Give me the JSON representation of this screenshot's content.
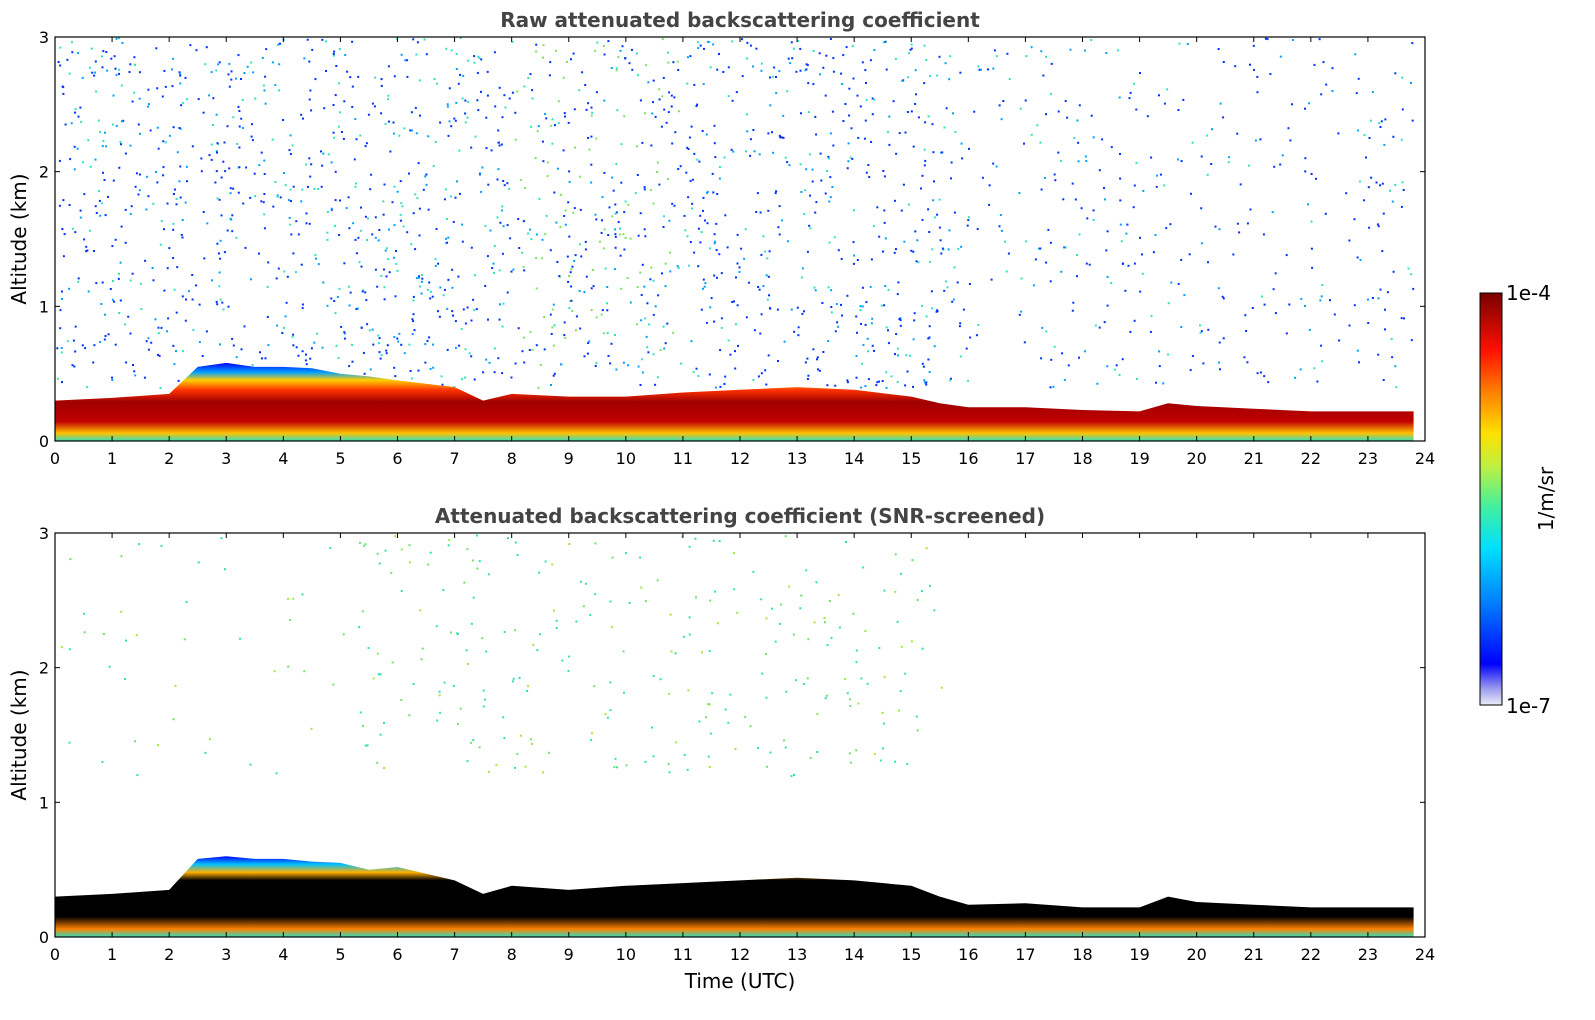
{
  "chart_data": [
    {
      "type": "heatmap",
      "title": "Raw attenuated backscattering coefficient",
      "xlabel": "",
      "ylabel": "Altitude (km)",
      "xlim": [
        0,
        24
      ],
      "ylim": [
        0,
        3
      ],
      "xticks": [
        "0",
        "1",
        "2",
        "3",
        "4",
        "5",
        "6",
        "7",
        "8",
        "9",
        "10",
        "11",
        "12",
        "13",
        "14",
        "15",
        "16",
        "17",
        "18",
        "19",
        "20",
        "21",
        "22",
        "23",
        "24"
      ],
      "yticks": [
        "0",
        "1",
        "2",
        "3"
      ],
      "layer_top_km": [
        [
          0,
          0.3
        ],
        [
          1,
          0.32
        ],
        [
          2,
          0.35
        ],
        [
          2.5,
          0.55
        ],
        [
          3,
          0.58
        ],
        [
          3.5,
          0.55
        ],
        [
          4,
          0.55
        ],
        [
          4.5,
          0.54
        ],
        [
          5,
          0.5
        ],
        [
          5.5,
          0.48
        ],
        [
          6,
          0.45
        ],
        [
          7,
          0.4
        ],
        [
          7.5,
          0.3
        ],
        [
          8,
          0.35
        ],
        [
          9,
          0.33
        ],
        [
          10,
          0.33
        ],
        [
          11,
          0.36
        ],
        [
          12,
          0.38
        ],
        [
          13,
          0.4
        ],
        [
          14,
          0.38
        ],
        [
          15,
          0.33
        ],
        [
          15.5,
          0.28
        ],
        [
          16,
          0.25
        ],
        [
          17,
          0.25
        ],
        [
          18,
          0.23
        ],
        [
          19,
          0.22
        ],
        [
          19.5,
          0.28
        ],
        [
          20,
          0.26
        ],
        [
          21,
          0.24
        ],
        [
          22,
          0.22
        ],
        [
          23,
          0.22
        ],
        [
          23.8,
          0.22
        ]
      ],
      "colorbar": {
        "min": "1e-7",
        "max": "1e-4",
        "label": "1/m/sr",
        "scale": "log",
        "colormap": "jet"
      }
    },
    {
      "type": "heatmap",
      "title": "Attenuated backscattering coefficient (SNR-screened)",
      "xlabel": "Time (UTC)",
      "ylabel": "Altitude (km)",
      "xlim": [
        0,
        24
      ],
      "ylim": [
        0,
        3
      ],
      "xticks": [
        "0",
        "1",
        "2",
        "3",
        "4",
        "5",
        "6",
        "7",
        "8",
        "9",
        "10",
        "11",
        "12",
        "13",
        "14",
        "15",
        "16",
        "17",
        "18",
        "19",
        "20",
        "21",
        "22",
        "23",
        "24"
      ],
      "yticks": [
        "0",
        "1",
        "2",
        "3"
      ],
      "layer_top_km": [
        [
          0,
          0.3
        ],
        [
          1,
          0.32
        ],
        [
          2,
          0.35
        ],
        [
          2.5,
          0.58
        ],
        [
          3,
          0.6
        ],
        [
          3.5,
          0.58
        ],
        [
          4,
          0.58
        ],
        [
          4.5,
          0.56
        ],
        [
          5,
          0.55
        ],
        [
          5.5,
          0.5
        ],
        [
          6,
          0.52
        ],
        [
          7,
          0.42
        ],
        [
          7.5,
          0.32
        ],
        [
          8,
          0.38
        ],
        [
          9,
          0.35
        ],
        [
          10,
          0.38
        ],
        [
          11,
          0.4
        ],
        [
          12,
          0.42
        ],
        [
          13,
          0.44
        ],
        [
          14,
          0.42
        ],
        [
          15,
          0.38
        ],
        [
          15.5,
          0.3
        ],
        [
          16,
          0.24
        ],
        [
          17,
          0.25
        ],
        [
          18,
          0.22
        ],
        [
          19,
          0.22
        ],
        [
          19.5,
          0.3
        ],
        [
          20,
          0.26
        ],
        [
          21,
          0.24
        ],
        [
          22,
          0.22
        ],
        [
          23,
          0.22
        ],
        [
          23.8,
          0.22
        ]
      ],
      "colorbar": {
        "min": "1e-7",
        "max": "1e-4",
        "label": "1/m/sr",
        "scale": "log",
        "colormap": "jet"
      }
    }
  ],
  "colorbar": {
    "max_label": "1e-4",
    "min_label": "1e-7",
    "unit_label": "1/m/sr",
    "colors": [
      "#e6e6f8",
      "#b4b4f0",
      "#7878ec",
      "#0000ff",
      "#0050ff",
      "#00a0ff",
      "#00e6e6",
      "#40f0a0",
      "#a0f040",
      "#f0f000",
      "#ffb000",
      "#ff6000",
      "#ff0000",
      "#c00000",
      "#800000"
    ]
  }
}
